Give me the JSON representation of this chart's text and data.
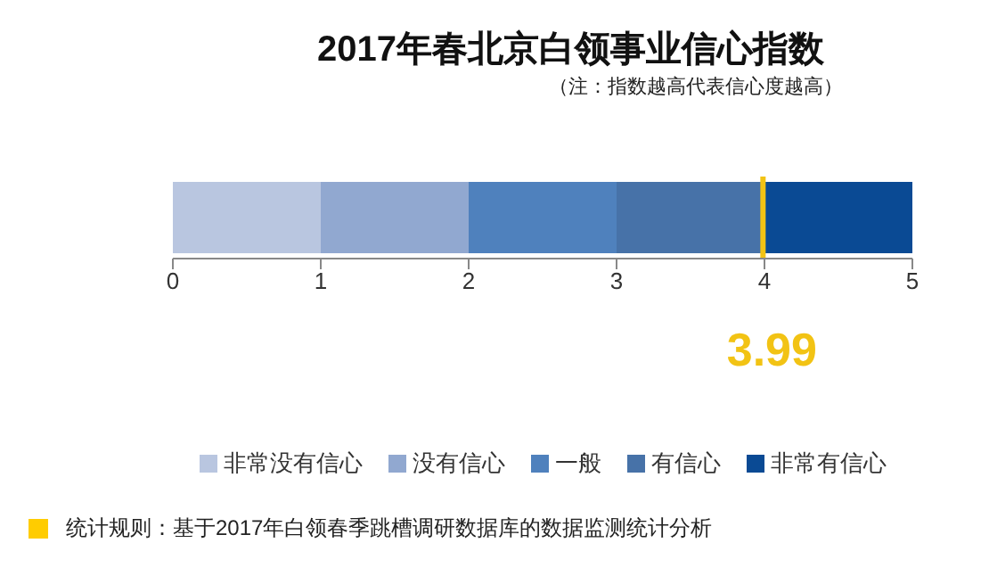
{
  "chart_data": {
    "type": "bar",
    "title": "2017年春北京白领事业信心指数",
    "subtitle": "（注：指数越高代表信心度越高）",
    "orientation": "horizontal",
    "stacked": true,
    "categories": [
      null
    ],
    "series": [
      {
        "name": "非常没有信心",
        "color": "#b9c6e0",
        "values": [
          1
        ]
      },
      {
        "name": "没有信心",
        "color": "#91a8d0",
        "values": [
          1
        ]
      },
      {
        "name": "一般",
        "color": "#4f81bd",
        "values": [
          1
        ]
      },
      {
        "name": "有信心",
        "color": "#4772a8",
        "values": [
          1
        ]
      },
      {
        "name": "非常有信心",
        "color": "#0a4a94",
        "values": [
          1
        ]
      }
    ],
    "xlim": [
      0,
      5
    ],
    "xticks": [
      0,
      1,
      2,
      3,
      4,
      5
    ],
    "ref_lines": [
      {
        "axis": "x",
        "value": 3.99,
        "label": "3.99",
        "color": "#f2c314"
      }
    ],
    "legend": "bottom",
    "annotations": [
      "统计规则：基于2017年白领春季跳槽调研数据库的数据监测统计分析"
    ]
  }
}
